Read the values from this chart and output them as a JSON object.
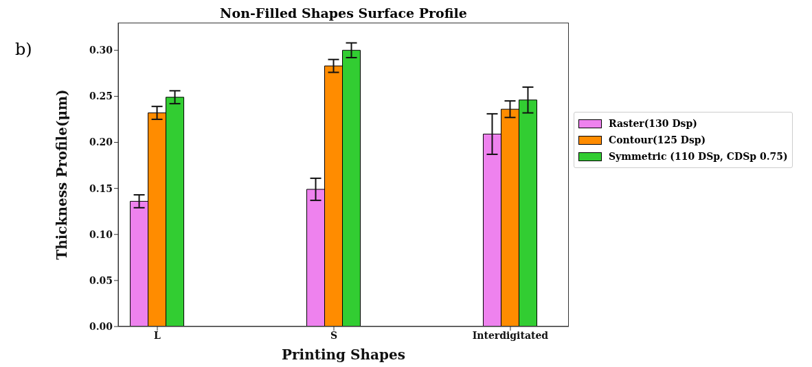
{
  "chart_data": {
    "type": "bar",
    "title": "Non-Filled Shapes Surface Profile",
    "xlabel": "Printing Shapes",
    "ylabel": "Thickness Profile(μm)",
    "annotations": [
      "b)"
    ],
    "categories": [
      "L",
      "S",
      "Interdigitated"
    ],
    "series": [
      {
        "name": "Raster(130 Dsp)",
        "color": "#ee82ee",
        "values": [
          0.136,
          0.149,
          0.209
        ],
        "errors": [
          0.007,
          0.012,
          0.022
        ]
      },
      {
        "name": "Contour(125 Dsp)",
        "color": "#ff8c00",
        "values": [
          0.232,
          0.283,
          0.236
        ],
        "errors": [
          0.007,
          0.007,
          0.009
        ]
      },
      {
        "name": "Symmetric (110 DSp, CDSp 0.75)",
        "color": "#32cd32",
        "values": [
          0.249,
          0.3,
          0.246
        ],
        "errors": [
          0.007,
          0.008,
          0.014
        ]
      }
    ],
    "ylim": [
      0,
      0.33
    ],
    "yticks": [
      {
        "value": 0,
        "label": "0.00"
      },
      {
        "value": 0.05,
        "label": "0.05"
      },
      {
        "value": 0.1,
        "label": "0.10"
      },
      {
        "value": 0.15,
        "label": "0.15"
      },
      {
        "value": 0.2,
        "label": "0.20"
      },
      {
        "value": 0.25,
        "label": "0.25"
      },
      {
        "value": 0.3,
        "label": "0.30"
      }
    ],
    "grid": false,
    "legend": "right"
  }
}
